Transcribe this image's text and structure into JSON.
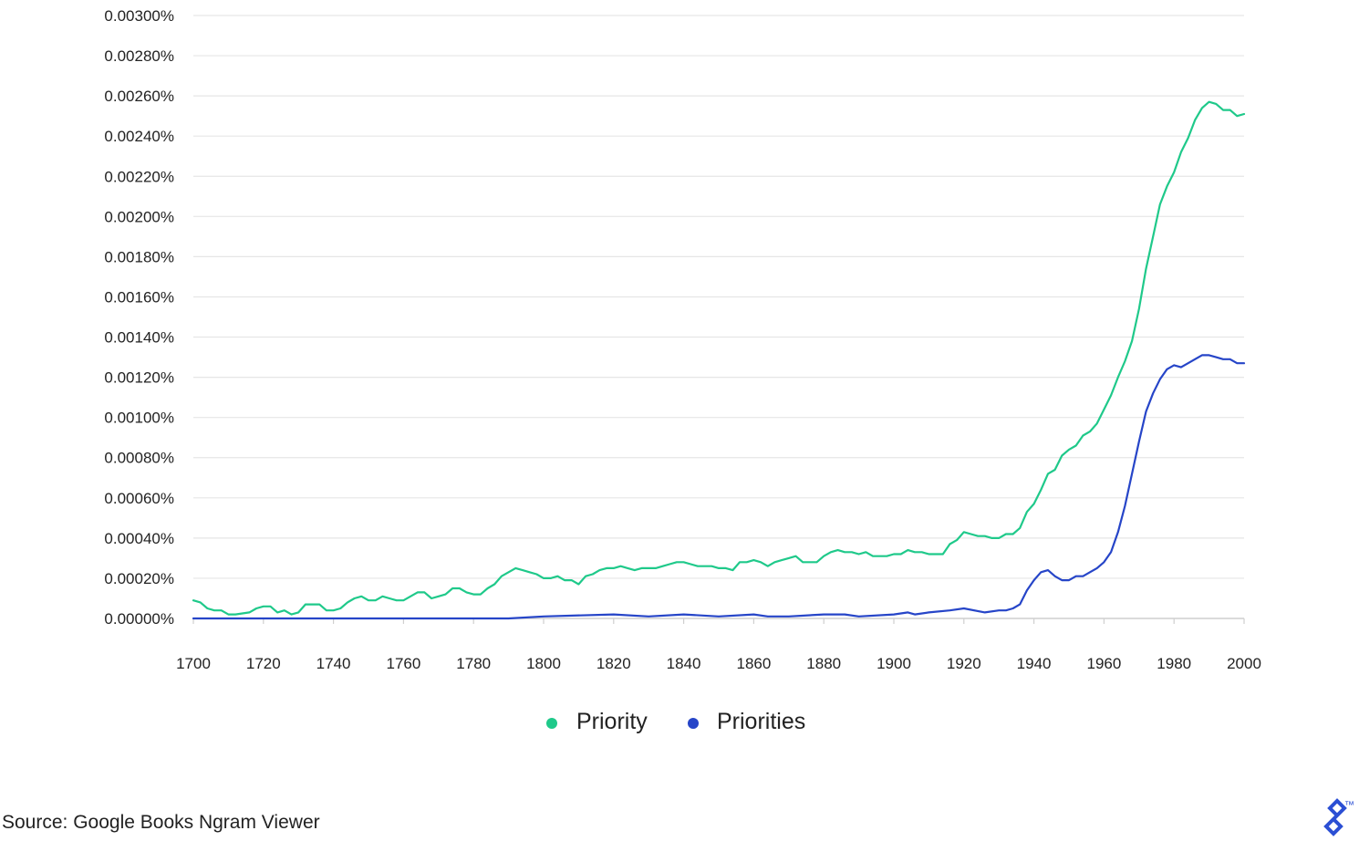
{
  "source": "Source: Google Books Ngram Viewer",
  "logo": {
    "name": "Toptal",
    "mark": "™"
  },
  "colors": {
    "priority": "#1fc98a",
    "priorities": "#2645c8",
    "grid": "#e6e6e6",
    "axis": "#cfcfcf"
  },
  "chart_data": {
    "type": "line",
    "title": "",
    "xlabel": "",
    "ylabel": "",
    "xlim": [
      1700,
      2000
    ],
    "ylim": [
      0,
      0.003
    ],
    "grid": true,
    "legend_position": "bottom-center",
    "x_ticks": [
      1700,
      1720,
      1740,
      1760,
      1780,
      1800,
      1820,
      1840,
      1860,
      1880,
      1900,
      1920,
      1940,
      1960,
      1980,
      2000
    ],
    "x_tick_labels": [
      "1700",
      "1720",
      "1740",
      "1760",
      "1780",
      "1800",
      "1820",
      "1840",
      "1860",
      "1880",
      "1900",
      "1920",
      "1940",
      "1960",
      "1980",
      "2000"
    ],
    "y_ticks": [
      0,
      0.0002,
      0.0004,
      0.0006,
      0.0008,
      0.001,
      0.0012,
      0.0014,
      0.0016,
      0.0018,
      0.002,
      0.0022,
      0.0024,
      0.0026,
      0.0028,
      0.003
    ],
    "y_tick_labels": [
      "0.00000%",
      "0.00020%",
      "0.00040%",
      "0.00060%",
      "0.00080%",
      "0.00100%",
      "0.00120%",
      "0.00140%",
      "0.00160%",
      "0.00180%",
      "0.00200%",
      "0.00220%",
      "0.00240%",
      "0.00260%",
      "0.00280%",
      "0.00300%"
    ],
    "series": [
      {
        "name": "Priority",
        "color": "#1fc98a",
        "x": [
          1700,
          1702,
          1704,
          1706,
          1708,
          1710,
          1712,
          1716,
          1718,
          1720,
          1722,
          1724,
          1726,
          1728,
          1730,
          1732,
          1734,
          1736,
          1738,
          1740,
          1742,
          1744,
          1746,
          1748,
          1750,
          1752,
          1754,
          1756,
          1758,
          1760,
          1762,
          1764,
          1766,
          1768,
          1770,
          1772,
          1774,
          1776,
          1778,
          1780,
          1782,
          1784,
          1786,
          1788,
          1790,
          1792,
          1794,
          1796,
          1798,
          1800,
          1802,
          1804,
          1806,
          1808,
          1810,
          1812,
          1814,
          1816,
          1818,
          1820,
          1822,
          1824,
          1826,
          1828,
          1830,
          1832,
          1834,
          1836,
          1838,
          1840,
          1842,
          1844,
          1846,
          1848,
          1850,
          1852,
          1854,
          1856,
          1858,
          1860,
          1862,
          1864,
          1866,
          1868,
          1870,
          1872,
          1874,
          1876,
          1878,
          1880,
          1882,
          1884,
          1886,
          1888,
          1890,
          1892,
          1894,
          1896,
          1898,
          1900,
          1902,
          1904,
          1906,
          1908,
          1910,
          1912,
          1914,
          1916,
          1918,
          1920,
          1922,
          1924,
          1926,
          1928,
          1930,
          1932,
          1934,
          1936,
          1938,
          1940,
          1942,
          1944,
          1946,
          1948,
          1950,
          1952,
          1954,
          1956,
          1958,
          1960,
          1962,
          1964,
          1966,
          1968,
          1970,
          1972,
          1974,
          1976,
          1978,
          1980,
          1982,
          1984,
          1986,
          1988,
          1990,
          1992,
          1994,
          1996,
          1998,
          2000
        ],
        "y": [
          9e-05,
          8e-05,
          5e-05,
          4e-05,
          4e-05,
          2e-05,
          2e-05,
          3e-05,
          5e-05,
          6e-05,
          6e-05,
          3e-05,
          4e-05,
          2e-05,
          3e-05,
          7e-05,
          7e-05,
          7e-05,
          4e-05,
          4e-05,
          5e-05,
          8e-05,
          0.0001,
          0.00011,
          9e-05,
          9e-05,
          0.00011,
          0.0001,
          9e-05,
          9e-05,
          0.00011,
          0.00013,
          0.00013,
          0.0001,
          0.00011,
          0.00012,
          0.00015,
          0.00015,
          0.00013,
          0.00012,
          0.00012,
          0.00015,
          0.00017,
          0.00021,
          0.00023,
          0.00025,
          0.00024,
          0.00023,
          0.00022,
          0.0002,
          0.0002,
          0.00021,
          0.00019,
          0.00019,
          0.00017,
          0.00021,
          0.00022,
          0.00024,
          0.00025,
          0.00025,
          0.00026,
          0.00025,
          0.00024,
          0.00025,
          0.00025,
          0.00025,
          0.00026,
          0.00027,
          0.00028,
          0.00028,
          0.00027,
          0.00026,
          0.00026,
          0.00026,
          0.00025,
          0.00025,
          0.00024,
          0.00028,
          0.00028,
          0.00029,
          0.00028,
          0.00026,
          0.00028,
          0.00029,
          0.0003,
          0.00031,
          0.00028,
          0.00028,
          0.00028,
          0.00031,
          0.00033,
          0.00034,
          0.00033,
          0.00033,
          0.00032,
          0.00033,
          0.00031,
          0.00031,
          0.00031,
          0.00032,
          0.00032,
          0.00034,
          0.00033,
          0.00033,
          0.00032,
          0.00032,
          0.00032,
          0.00037,
          0.00039,
          0.00043,
          0.00042,
          0.00041,
          0.00041,
          0.0004,
          0.0004,
          0.00042,
          0.00042,
          0.00045,
          0.00053,
          0.00057,
          0.00064,
          0.00072,
          0.00074,
          0.00081,
          0.00084,
          0.00086,
          0.00091,
          0.00093,
          0.00097,
          0.00104,
          0.00111,
          0.0012,
          0.00128,
          0.00138,
          0.00154,
          0.00174,
          0.0019,
          0.00206,
          0.00215,
          0.00222,
          0.00232,
          0.00239,
          0.00248,
          0.00254,
          0.00257,
          0.00256,
          0.00253,
          0.00253,
          0.0025,
          0.00251
        ]
      },
      {
        "name": "Priorities",
        "color": "#2645c8",
        "x": [
          1700,
          1740,
          1760,
          1780,
          1790,
          1800,
          1820,
          1830,
          1840,
          1850,
          1860,
          1864,
          1870,
          1880,
          1886,
          1890,
          1900,
          1904,
          1906,
          1910,
          1916,
          1920,
          1926,
          1930,
          1932,
          1934,
          1936,
          1938,
          1940,
          1942,
          1944,
          1946,
          1948,
          1950,
          1952,
          1954,
          1956,
          1958,
          1960,
          1962,
          1964,
          1966,
          1968,
          1970,
          1972,
          1974,
          1976,
          1978,
          1980,
          1982,
          1984,
          1986,
          1988,
          1990,
          1992,
          1994,
          1996,
          1998,
          2000
        ],
        "y": [
          0,
          0,
          0,
          0,
          0,
          1e-05,
          2e-05,
          1e-05,
          2e-05,
          1e-05,
          2e-05,
          1e-05,
          1e-05,
          2e-05,
          2e-05,
          1e-05,
          2e-05,
          3e-05,
          2e-05,
          3e-05,
          4e-05,
          5e-05,
          3e-05,
          4e-05,
          4e-05,
          5e-05,
          7e-05,
          0.00014,
          0.00019,
          0.00023,
          0.00024,
          0.00021,
          0.00019,
          0.00019,
          0.00021,
          0.00021,
          0.00023,
          0.00025,
          0.00028,
          0.00033,
          0.00043,
          0.00056,
          0.00072,
          0.00088,
          0.00103,
          0.00112,
          0.00119,
          0.00124,
          0.00126,
          0.00125,
          0.00127,
          0.00129,
          0.00131,
          0.00131,
          0.0013,
          0.00129,
          0.00129,
          0.00127,
          0.00127
        ]
      }
    ]
  }
}
